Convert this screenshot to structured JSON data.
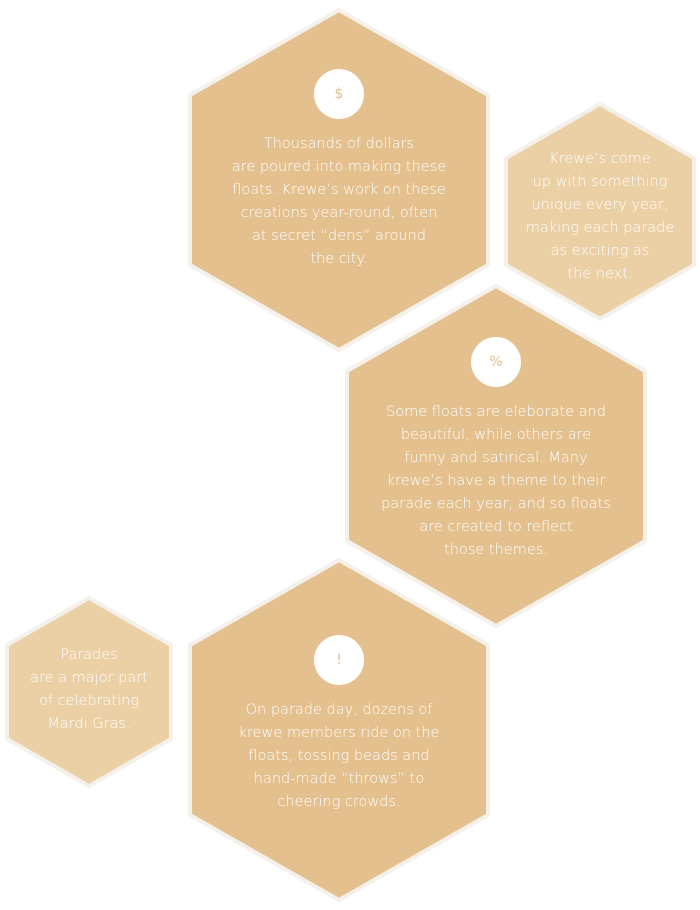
{
  "colors": {
    "hex_primary": "#e3c08e",
    "hex_secondary": "#ebcfa5",
    "icon_background": "#ffffff",
    "icon_glyph": "#e2bd8a",
    "text": "#ffffff",
    "page_background": "#ffffff"
  },
  "cells": [
    {
      "icon": "dollar-icon",
      "glyph": "$",
      "text": "Thousands of dollars\nare poured into making these\nfloats. Krewe’s work on these\ncreations year-round, often\nat secret “dens” around\nthe city."
    },
    {
      "icon": null,
      "glyph": null,
      "text": "Krewe’s come\nup with something\nunique every year,\nmaking each parade\nas exciting as\nthe next."
    },
    {
      "icon": "percent-icon",
      "glyph": "%",
      "text": "Some floats are eleborate and\nbeautiful, while others are\nfunny and satirical. Many\nkrewe’s have a theme to their\nparade each year, and so floats\nare created to reflect\nthose themes."
    },
    {
      "icon": null,
      "glyph": null,
      "text": "Parades\nare a major part\nof celebrating\nMardi Gras."
    },
    {
      "icon": "exclamation-icon",
      "glyph": "!",
      "text": "On parade day, dozens of\nkrewe members ride on the\nfloats, tossing beads and\nhand-made “throws” to\ncheering crowds."
    }
  ]
}
